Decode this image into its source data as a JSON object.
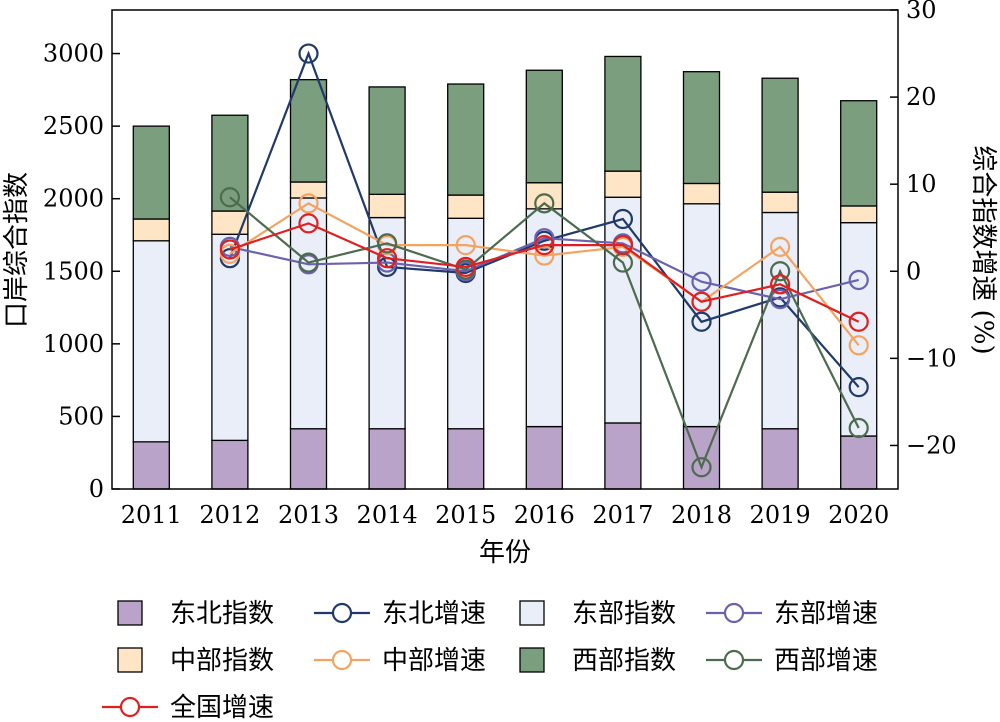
{
  "chart_data": {
    "type": "bar",
    "xlabel": "年份",
    "ylabel_left": "口岸综合指数",
    "ylabel_right": "综合指数增速 (%)",
    "ylim_left": [
      0,
      3300
    ],
    "yticks_left": [
      "0",
      "500",
      "1000",
      "1500",
      "2000",
      "2500",
      "3000"
    ],
    "ylim_right": [
      -25,
      30
    ],
    "yticks_right": [
      "−20",
      "−10",
      "0",
      "10",
      "20",
      "30"
    ],
    "categories": [
      "2011",
      "2012",
      "2013",
      "2014",
      "2015",
      "2016",
      "2017",
      "2018",
      "2019",
      "2020"
    ],
    "bar_series": [
      {
        "name": "东北指数",
        "color": "#b9a3c9",
        "values": [
          325,
          335,
          415,
          415,
          415,
          430,
          455,
          430,
          415,
          365
        ]
      },
      {
        "name": "东部指数",
        "color": "#e9eef8",
        "values": [
          1385,
          1420,
          1590,
          1455,
          1450,
          1500,
          1555,
          1535,
          1490,
          1470
        ]
      },
      {
        "name": "中部指数",
        "color": "#fde5c6",
        "values": [
          150,
          160,
          110,
          160,
          160,
          180,
          180,
          140,
          140,
          115
        ]
      },
      {
        "name": "西部指数",
        "color": "#7a9e7e",
        "values": [
          640,
          660,
          705,
          740,
          765,
          775,
          790,
          770,
          785,
          725
        ]
      }
    ],
    "line_series": [
      {
        "name": "东北增速",
        "color": "#1f3a6b",
        "values": [
          null,
          1.5,
          25.0,
          0.5,
          -0.2,
          3.5,
          6.0,
          -5.8,
          -3.0,
          -13.3
        ]
      },
      {
        "name": "东部增速",
        "color": "#6a62b0",
        "values": [
          null,
          2.8,
          0.8,
          1.0,
          0.0,
          3.8,
          3.2,
          -1.2,
          -3.2,
          -1.0
        ]
      },
      {
        "name": "中部增速",
        "color": "#f4a460",
        "values": [
          null,
          2.0,
          7.8,
          3.0,
          3.0,
          1.8,
          2.8,
          -3.5,
          2.8,
          -8.5
        ]
      },
      {
        "name": "西部增速",
        "color": "#4d6b4f",
        "values": [
          null,
          8.5,
          1.0,
          3.2,
          0.2,
          7.8,
          1.0,
          -22.5,
          0.0,
          -18.0
        ]
      },
      {
        "name": "全国增速",
        "color": "#e02020",
        "values": [
          null,
          2.5,
          5.5,
          1.5,
          0.5,
          3.0,
          3.0,
          -3.5,
          -1.5,
          -5.8
        ]
      }
    ],
    "legend": {
      "placement": "bottom",
      "items": [
        {
          "label": "东北指数",
          "kind": "bar",
          "color": "#b9a3c9"
        },
        {
          "label": "东北增速",
          "kind": "line",
          "color": "#1f3a6b"
        },
        {
          "label": "东部指数",
          "kind": "bar",
          "color": "#e9eef8"
        },
        {
          "label": "东部增速",
          "kind": "line",
          "color": "#6a62b0"
        },
        {
          "label": "中部指数",
          "kind": "bar",
          "color": "#fde5c6"
        },
        {
          "label": "中部增速",
          "kind": "line",
          "color": "#f4a460"
        },
        {
          "label": "西部指数",
          "kind": "bar",
          "color": "#7a9e7e"
        },
        {
          "label": "西部增速",
          "kind": "line",
          "color": "#4d6b4f"
        },
        {
          "label": "全国增速",
          "kind": "line",
          "color": "#e02020"
        }
      ]
    },
    "grid": false
  }
}
